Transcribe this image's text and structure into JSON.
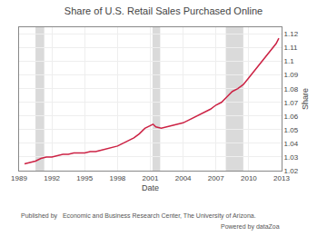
{
  "chart_data": {
    "type": "line",
    "title": "Share of U.S. Retail Sales Purchased Online",
    "xlabel": "Date",
    "ylabel": "Share",
    "x": [
      1989.5,
      1990.0,
      1990.5,
      1991.0,
      1991.5,
      1992.0,
      1992.5,
      1993.0,
      1993.5,
      1994.0,
      1994.5,
      1995.0,
      1995.5,
      1996.0,
      1996.5,
      1997.0,
      1997.5,
      1998.0,
      1998.5,
      1999.0,
      1999.5,
      2000.0,
      2000.5,
      2001.0,
      2001.25,
      2001.5,
      2002.0,
      2002.5,
      2003.0,
      2003.5,
      2004.0,
      2004.5,
      2005.0,
      2005.5,
      2006.0,
      2006.5,
      2007.0,
      2007.5,
      2008.0,
      2008.5,
      2009.0,
      2009.5,
      2010.0,
      2010.5,
      2011.0,
      2011.5,
      2012.0,
      2012.5,
      2012.75
    ],
    "values": [
      1.025,
      1.026,
      1.027,
      1.029,
      1.03,
      1.03,
      1.031,
      1.032,
      1.032,
      1.033,
      1.033,
      1.033,
      1.034,
      1.034,
      1.035,
      1.036,
      1.037,
      1.038,
      1.04,
      1.042,
      1.044,
      1.047,
      1.051,
      1.053,
      1.054,
      1.052,
      1.051,
      1.052,
      1.053,
      1.054,
      1.055,
      1.057,
      1.059,
      1.061,
      1.063,
      1.065,
      1.068,
      1.07,
      1.074,
      1.078,
      1.08,
      1.083,
      1.088,
      1.093,
      1.098,
      1.103,
      1.108,
      1.113,
      1.117
    ],
    "color": "#cc2244",
    "xlim": [
      1989,
      2013
    ],
    "xticks": [
      1989,
      1992,
      1995,
      1998,
      2001,
      2004,
      2007,
      2010,
      2013
    ],
    "ylim": [
      1.02,
      1.125
    ],
    "yticks": [
      1.02,
      1.03,
      1.04,
      1.05,
      1.06,
      1.07,
      1.08,
      1.09,
      1.1,
      1.11,
      1.12
    ],
    "grid": true,
    "recession_bands": [
      [
        1990.5,
        1991.3
      ],
      [
        2001.2,
        2001.9
      ],
      [
        2007.9,
        2009.5
      ]
    ],
    "annotations": [
      "Published by   Economic and Business Research Center, The University of Arizona.",
      "Powered by dataZoa"
    ]
  }
}
